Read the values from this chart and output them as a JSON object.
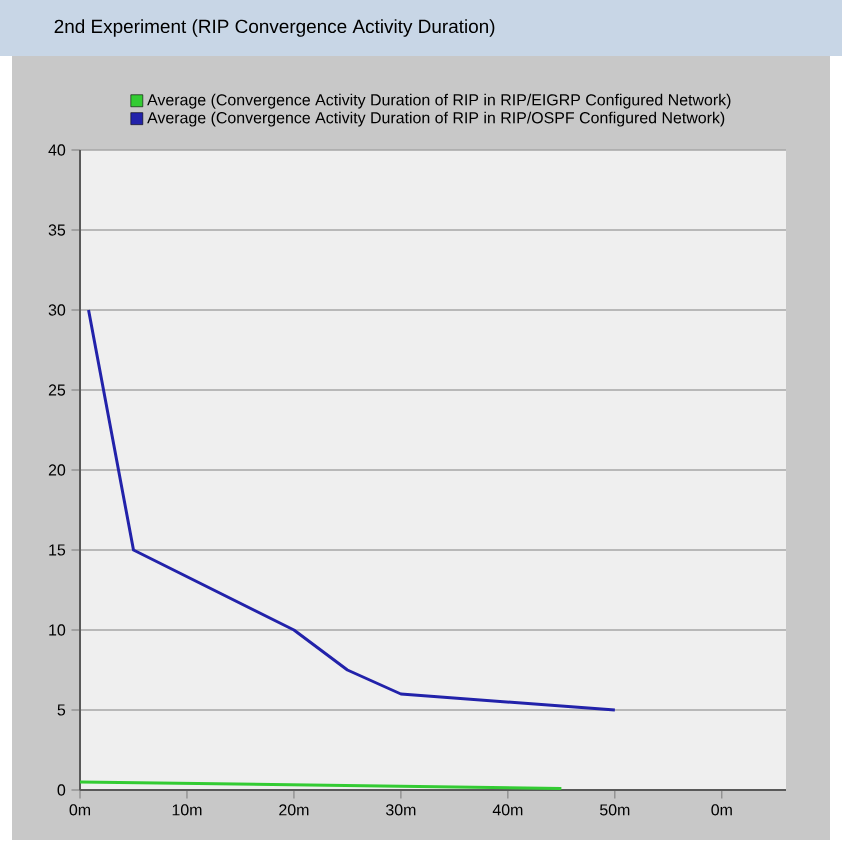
{
  "chart_data": {
    "type": "line",
    "title": "2nd Experiment (RIP Convergence Activity Duration)",
    "xlim": [
      0,
      66
    ],
    "ylim": [
      0,
      40
    ],
    "xticks": [
      {
        "value": 0,
        "label": "0m"
      },
      {
        "value": 10,
        "label": "10m"
      },
      {
        "value": 20,
        "label": "20m"
      },
      {
        "value": 30,
        "label": "30m"
      },
      {
        "value": 40,
        "label": "40m"
      },
      {
        "value": 50,
        "label": "50m"
      },
      {
        "value": 60,
        "label": "0m"
      }
    ],
    "yticks": [
      0,
      5,
      10,
      15,
      20,
      25,
      30,
      35,
      40
    ],
    "grid": "y",
    "legend": "top",
    "series": [
      {
        "name": "Average (Convergence Activity Duration of RIP in RIP/EIGRP Configured Network)",
        "color": "#33cc33",
        "x": [
          0,
          45
        ],
        "values": [
          0.5,
          0.1
        ]
      },
      {
        "name": "Average (Convergence Activity Duration of RIP in RIP/OSPF Configured Network)",
        "color": "#2222aa",
        "x": [
          0.8,
          5,
          20,
          25,
          30,
          50
        ],
        "values": [
          30,
          15,
          10,
          7.5,
          6,
          5
        ]
      }
    ]
  }
}
